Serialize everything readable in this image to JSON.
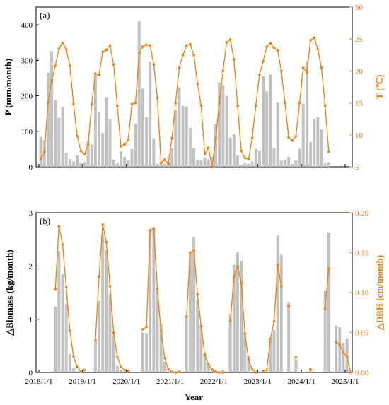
{
  "colors": {
    "bar": "#c0c0c0",
    "line": "#f07e0b",
    "axis": "#000000"
  },
  "chart_data": [
    {
      "type": "bar+line",
      "panel_label": "(a)",
      "ylabel": "P (mm/month)",
      "y2label": "T (℃)",
      "ylim": [
        0,
        450
      ],
      "yticks": [
        0,
        100,
        200,
        300,
        400
      ],
      "y2lim": [
        5,
        30
      ],
      "y2ticks": [
        5,
        10,
        15,
        20,
        25,
        30
      ],
      "x_start": "2018/1",
      "bar_series": {
        "name": "P (mm/month)",
        "values": [
          84,
          76,
          265,
          326,
          188,
          138,
          168,
          40,
          22,
          15,
          32,
          10,
          13,
          72,
          62,
          262,
          155,
          95,
          196,
          135,
          20,
          10,
          43,
          28,
          18,
          50,
          120,
          410,
          220,
          140,
          295,
          80,
          8,
          12,
          8,
          13,
          52,
          160,
          224,
          172,
          170,
          110,
          52,
          18,
          18,
          25,
          22,
          28,
          120,
          238,
          230,
          200,
          82,
          92,
          32,
          5,
          12,
          8,
          15,
          50,
          45,
          255,
          213,
          260,
          52,
          182,
          18,
          20,
          28,
          8,
          18,
          50,
          178,
          298,
          70,
          135,
          140,
          105,
          10,
          13
        ]
      },
      "line_series": {
        "name": "T (℃)",
        "values": [
          6.2,
          7.3,
          15.0,
          18.5,
          20.8,
          23.5,
          24.4,
          23.4,
          20.8,
          14.8,
          9.8,
          7.5,
          7.0,
          8.5,
          14.8,
          19.6,
          19.4,
          23.0,
          23.3,
          24.0,
          21.0,
          14.5,
          8.2,
          8.5,
          9.2,
          14.8,
          15.0,
          22.8,
          23.8,
          24.1,
          24.0,
          21.0,
          15.8,
          5.6,
          6.1,
          5.5,
          9.5,
          15.0,
          20.5,
          22.5,
          24.0,
          24.2,
          22.5,
          18.0,
          14.6,
          7.0,
          8.0,
          5.0,
          9.5,
          15.0,
          20.0,
          24.5,
          24.9,
          21.8,
          14.5,
          7.5,
          6.4,
          6.2,
          9.5,
          14.6,
          19.4,
          21.5,
          23.8,
          24.3,
          23.6,
          23.2,
          20.0,
          15.0,
          9.6,
          9.1,
          9.8,
          15.0,
          20.5,
          19.8,
          24.8,
          25.2,
          23.4,
          20.5,
          14.6,
          7.4
        ]
      }
    },
    {
      "type": "bar+line",
      "panel_label": "(b)",
      "xlabel": "Year",
      "ylabel": "△Biomass (kg/month)",
      "y2label": "△DBH (cm/month)",
      "ylim": [
        0,
        3
      ],
      "yticks": [
        0,
        1,
        2,
        3
      ],
      "y2lim": [
        0,
        0.2
      ],
      "y2ticks": [
        "0.00",
        "0.05",
        "0.10",
        "0.15",
        "0.20"
      ],
      "x_start": "2018/1",
      "xtick_labels": [
        "2018/1/1",
        "2019/1/1",
        "2020/1/1",
        "2021/1/1",
        "2022/1/1",
        "2023/1/1",
        "2024/1/1",
        "2025/1/1"
      ],
      "bar_series": {
        "name": "△Biomass (kg/month)",
        "values": [
          null,
          null,
          null,
          null,
          1.24,
          2.28,
          1.85,
          1.29,
          0.35,
          0.08,
          0.02,
          0.01,
          0.0,
          0.0,
          0.0,
          0.59,
          1.34,
          2.6,
          2.3,
          1.47,
          0.71,
          0.12,
          0.05,
          0.02,
          0.02,
          0.0,
          0.0,
          0.0,
          0.75,
          0.74,
          2.68,
          2.73,
          1.55,
          0.93,
          0.2,
          0.02,
          0.0,
          0.0,
          0.02,
          0.0,
          1.07,
          2.27,
          2.54,
          1.36,
          0.88,
          0.36,
          0.12,
          0.04,
          0.0,
          0.0,
          0.05,
          0.0,
          1.1,
          2.02,
          2.26,
          2.1,
          0.74,
          0.32,
          0.02,
          0.0,
          0.0,
          0.05,
          0.0,
          0.6,
          0.8,
          2.57,
          2.21,
          0.0,
          1.32,
          0.0,
          0.25,
          0.0,
          0.0,
          0.0,
          0.06,
          0.0,
          0.0,
          0.0,
          1.53,
          2.63,
          0.0,
          0.88,
          0.85,
          0.56,
          0.64,
          0.0
        ]
      },
      "line_series": {
        "name": "△DBH (cm/month)",
        "values": [
          null,
          null,
          null,
          null,
          0.104,
          0.183,
          0.16,
          0.107,
          0.052,
          0.02,
          0.007,
          0.001,
          0.003,
          null,
          null,
          0.04,
          0.12,
          0.185,
          0.163,
          0.108,
          0.05,
          0.02,
          0.007,
          0.003,
          0.002,
          null,
          null,
          null,
          0.054,
          0.057,
          0.178,
          0.18,
          0.105,
          0.052,
          0.018,
          0.004,
          0.001,
          0.0,
          0.001,
          null,
          0.07,
          0.15,
          0.153,
          0.098,
          0.058,
          0.022,
          0.01,
          0.004,
          0.001,
          0.0,
          0.0,
          null,
          0.064,
          0.12,
          0.133,
          0.112,
          0.049,
          0.016,
          0.004,
          0.0,
          null,
          0.002,
          0.003,
          0.042,
          0.064,
          0.135,
          0.108,
          null,
          0.083,
          null,
          0.019,
          null,
          null,
          null,
          0.004,
          null,
          null,
          null,
          0.08,
          0.13,
          null,
          0.038,
          0.035,
          0.025,
          0.02,
          0.0
        ]
      }
    }
  ]
}
